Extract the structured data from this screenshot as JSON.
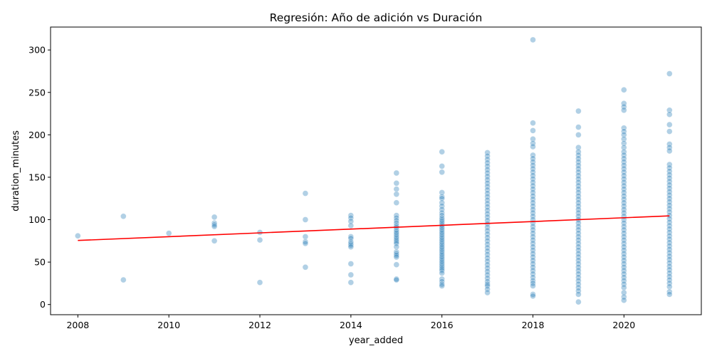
{
  "chart_data": {
    "type": "scatter",
    "title": "Regresión: Año de adición vs Duración",
    "xlabel": "year_added",
    "ylabel": "duration_minutes",
    "xlim": [
      2007.4,
      2021.7
    ],
    "ylim": [
      -12,
      327
    ],
    "xticks": [
      2008,
      2010,
      2012,
      2014,
      2016,
      2018,
      2020
    ],
    "yticks": [
      0,
      50,
      100,
      150,
      200,
      250,
      300
    ],
    "grid": false,
    "point_color": "#1f77b4",
    "line_color": "#ff0000",
    "points_by_year": [
      {
        "x": 2008,
        "y": [
          81
        ]
      },
      {
        "x": 2009,
        "y": [
          104,
          29
        ]
      },
      {
        "x": 2010,
        "y": [
          84
        ]
      },
      {
        "x": 2011,
        "y": [
          103,
          96,
          94,
          92,
          75
        ]
      },
      {
        "x": 2012,
        "y": [
          85,
          76,
          26
        ]
      },
      {
        "x": 2013,
        "y": [
          131,
          100,
          80,
          74,
          72,
          44
        ]
      },
      {
        "x": 2014,
        "y": [
          105,
          102,
          98,
          93,
          80,
          78,
          74,
          72,
          70,
          68,
          48,
          35,
          26
        ]
      },
      {
        "x": 2015,
        "y": [
          155,
          143,
          136,
          130,
          120,
          105,
          102,
          99,
          96,
          93,
          91,
          88,
          86,
          84,
          82,
          80,
          78,
          76,
          74,
          72,
          68,
          62,
          60,
          58,
          56,
          47,
          30,
          29
        ]
      },
      {
        "x": 2016,
        "y": [
          180,
          163,
          156,
          132,
          127,
          125,
          120,
          116,
          112,
          108,
          105,
          102,
          100,
          98,
          96,
          94,
          92,
          90,
          88,
          86,
          84,
          82,
          80,
          78,
          76,
          74,
          72,
          70,
          68,
          66,
          64,
          62,
          60,
          58,
          56,
          54,
          52,
          50,
          48,
          46,
          44,
          42,
          40,
          37,
          30,
          27,
          24,
          22
        ]
      },
      {
        "x": 2017,
        "y": [
          179,
          175,
          171,
          167,
          163,
          159,
          155,
          151,
          147,
          143,
          139,
          135,
          131,
          127,
          123,
          119,
          115,
          111,
          107,
          103,
          99,
          95,
          91,
          87,
          83,
          79,
          75,
          71,
          67,
          63,
          59,
          55,
          51,
          47,
          43,
          39,
          35,
          31,
          27,
          24,
          22,
          18,
          14
        ]
      },
      {
        "x": 2018,
        "y": [
          312,
          214,
          205,
          195,
          190,
          186,
          176,
          172,
          168,
          164,
          160,
          156,
          152,
          148,
          144,
          140,
          136,
          132,
          128,
          124,
          120,
          116,
          112,
          108,
          104,
          100,
          96,
          92,
          88,
          84,
          80,
          76,
          72,
          68,
          64,
          60,
          56,
          52,
          48,
          44,
          40,
          36,
          32,
          28,
          25,
          22,
          12,
          10
        ]
      },
      {
        "x": 2019,
        "y": [
          228,
          209,
          200,
          185,
          180,
          176,
          172,
          168,
          164,
          160,
          156,
          152,
          148,
          144,
          140,
          136,
          132,
          128,
          124,
          120,
          116,
          112,
          108,
          104,
          100,
          96,
          92,
          88,
          84,
          80,
          76,
          72,
          68,
          64,
          60,
          56,
          52,
          48,
          44,
          40,
          36,
          32,
          28,
          24,
          20,
          16,
          12,
          3
        ]
      },
      {
        "x": 2020,
        "y": [
          253,
          237,
          233,
          229,
          208,
          204,
          200,
          195,
          190,
          185,
          180,
          176,
          172,
          168,
          164,
          160,
          156,
          152,
          148,
          144,
          140,
          136,
          132,
          128,
          124,
          120,
          116,
          112,
          108,
          104,
          100,
          96,
          92,
          88,
          84,
          80,
          76,
          72,
          68,
          64,
          60,
          56,
          52,
          48,
          44,
          40,
          36,
          32,
          28,
          24,
          20,
          14,
          9,
          5
        ]
      },
      {
        "x": 2021,
        "y": [
          272,
          229,
          224,
          212,
          204,
          189,
          185,
          181,
          165,
          161,
          157,
          153,
          149,
          145,
          141,
          137,
          133,
          129,
          125,
          121,
          117,
          113,
          109,
          105,
          101,
          97,
          93,
          89,
          85,
          81,
          77,
          73,
          69,
          65,
          61,
          57,
          53,
          49,
          45,
          41,
          37,
          33,
          29,
          25,
          21,
          15,
          12
        ]
      }
    ],
    "regression_line": {
      "x": [
        2008,
        2021
      ],
      "y": [
        75.5,
        104.5
      ]
    }
  }
}
